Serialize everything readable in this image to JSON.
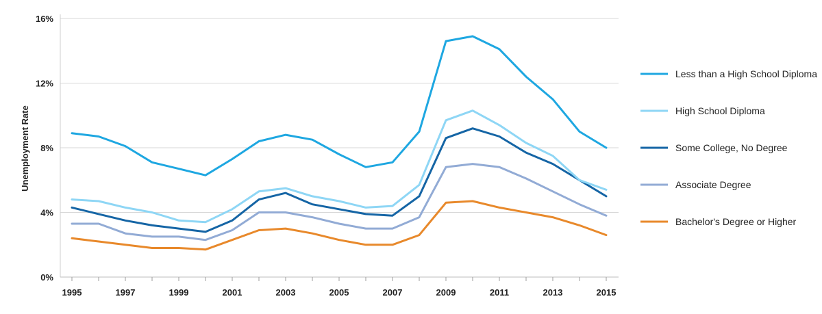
{
  "chart_data": {
    "type": "line",
    "title": "",
    "xlabel": "",
    "ylabel": "Unemployment Rate",
    "x": [
      1995,
      1996,
      1997,
      1998,
      1999,
      2000,
      2001,
      2002,
      2003,
      2004,
      2005,
      2006,
      2007,
      2008,
      2009,
      2010,
      2011,
      2012,
      2013,
      2014,
      2015
    ],
    "x_tick_labels": [
      "1995",
      "1997",
      "1999",
      "2001",
      "2003",
      "2005",
      "2007",
      "2009",
      "2011",
      "2013",
      "2015"
    ],
    "y_tick_values": [
      0,
      4,
      8,
      12,
      16
    ],
    "y_tick_labels": [
      "0%",
      "4%",
      "8%",
      "12%",
      "16%"
    ],
    "ylim": [
      0,
      16
    ],
    "xlim": [
      1995,
      2015
    ],
    "grid": "horizontal",
    "legend_position": "right",
    "series": [
      {
        "name": "Less than a High School Diploma",
        "color": "#1ea7e1",
        "values": [
          8.9,
          8.7,
          8.1,
          7.1,
          6.7,
          6.3,
          7.3,
          8.4,
          8.8,
          8.5,
          7.6,
          6.8,
          7.1,
          9.0,
          14.6,
          14.9,
          14.1,
          12.4,
          11.0,
          9.0,
          8.0
        ]
      },
      {
        "name": "High School Diploma",
        "color": "#8ed6f5",
        "values": [
          4.8,
          4.7,
          4.3,
          4.0,
          3.5,
          3.4,
          4.2,
          5.3,
          5.5,
          5.0,
          4.7,
          4.3,
          4.4,
          5.7,
          9.7,
          10.3,
          9.4,
          8.3,
          7.5,
          6.0,
          5.4
        ]
      },
      {
        "name": "Some College, No Degree",
        "color": "#1565a5",
        "values": [
          4.3,
          3.9,
          3.5,
          3.2,
          3.0,
          2.8,
          3.5,
          4.8,
          5.2,
          4.5,
          4.2,
          3.9,
          3.8,
          5.0,
          8.6,
          9.2,
          8.7,
          7.7,
          7.0,
          6.0,
          5.0
        ]
      },
      {
        "name": "Associate Degree",
        "color": "#92abd5",
        "values": [
          3.3,
          3.3,
          2.7,
          2.5,
          2.5,
          2.3,
          2.9,
          4.0,
          4.0,
          3.7,
          3.3,
          3.0,
          3.0,
          3.7,
          6.8,
          7.0,
          6.8,
          6.1,
          5.3,
          4.5,
          3.8
        ]
      },
      {
        "name": "Bachelor's Degree or Higher",
        "color": "#e8892b",
        "values": [
          2.4,
          2.2,
          2.0,
          1.8,
          1.8,
          1.7,
          2.3,
          2.9,
          3.0,
          2.7,
          2.3,
          2.0,
          2.0,
          2.6,
          4.6,
          4.7,
          4.3,
          4.0,
          3.7,
          3.2,
          2.6
        ]
      }
    ]
  }
}
